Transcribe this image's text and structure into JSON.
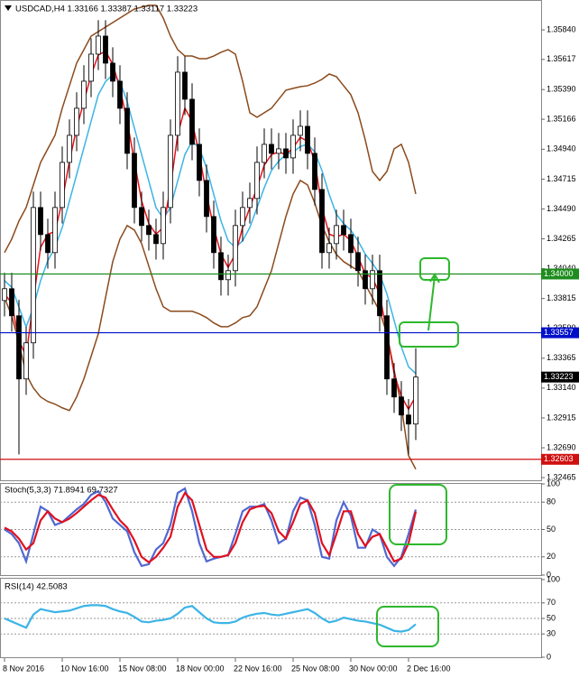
{
  "chart_data": [
    {
      "type": "candlestick",
      "title": "USDCAD,H4  1.33166 1.33387 1.33117 1.33223",
      "categories": [
        "8 Nov 2016",
        null,
        null,
        null,
        null,
        null,
        null,
        null,
        "10 Nov 16:00",
        null,
        null,
        null,
        null,
        null,
        null,
        null,
        "15 Nov 08:00",
        null,
        null,
        null,
        null,
        null,
        null,
        null,
        "18 Nov 00:00",
        null,
        null,
        null,
        null,
        null,
        null,
        null,
        "22 Nov 16:00",
        null,
        null,
        null,
        null,
        null,
        null,
        null,
        "25 Nov 08:00",
        null,
        null,
        null,
        null,
        null,
        null,
        null,
        "30 Nov 00:00",
        null,
        null,
        null,
        null,
        null,
        null,
        null,
        "2 Dec 16:00",
        null
      ],
      "open": [
        1.338,
        1.33889,
        1.33685,
        1.33209,
        1.33481,
        1.34501,
        1.34297,
        1.34161,
        1.34501,
        1.34841,
        1.35045,
        1.35249,
        1.35453,
        1.35657,
        1.35793,
        1.35589,
        1.35453,
        1.35249,
        1.34909,
        1.34501,
        1.34365,
        1.34297,
        1.34229,
        1.34501,
        1.35045,
        1.35521,
        1.35317,
        1.34977,
        1.34705,
        1.34433,
        1.34161,
        1.33957,
        1.34025,
        1.34365,
        1.34501,
        1.34569,
        1.34841,
        1.34977,
        1.34909,
        1.34943,
        1.34875,
        1.35045,
        1.35113,
        1.34909,
        1.34637,
        1.34161,
        1.34229,
        1.34365,
        1.34297,
        1.34161,
        1.34025,
        1.33889,
        1.34025,
        1.33685,
        1.33209,
        1.33073,
        1.32937,
        1.32869
      ],
      "high": [
        1.34009,
        1.34009,
        1.33805,
        1.33601,
        1.34621,
        1.34621,
        1.34417,
        1.34621,
        1.34961,
        1.35165,
        1.35369,
        1.35573,
        1.35777,
        1.35913,
        1.35913,
        1.35709,
        1.35573,
        1.35369,
        1.35029,
        1.34621,
        1.34485,
        1.34417,
        1.34621,
        1.35165,
        1.35641,
        1.35641,
        1.35437,
        1.35097,
        1.34825,
        1.34553,
        1.34281,
        1.34145,
        1.34485,
        1.34621,
        1.34689,
        1.34961,
        1.35097,
        1.35097,
        1.35063,
        1.35063,
        1.35165,
        1.35233,
        1.35233,
        1.35029,
        1.34757,
        1.34349,
        1.34485,
        1.34485,
        1.34417,
        1.34281,
        1.34145,
        1.34145,
        1.34145,
        1.33805,
        1.33329,
        1.33193,
        1.33057,
        1.3344
      ],
      "low": [
        1.3368,
        1.33565,
        1.3264,
        1.33089,
        1.33361,
        1.34177,
        1.34041,
        1.34041,
        1.34381,
        1.34721,
        1.34925,
        1.35129,
        1.35333,
        1.35537,
        1.35469,
        1.35333,
        1.35129,
        1.34789,
        1.34381,
        1.34245,
        1.34177,
        1.34109,
        1.34109,
        1.34381,
        1.34925,
        1.35197,
        1.34857,
        1.34585,
        1.34313,
        1.34041,
        1.33837,
        1.33837,
        1.33905,
        1.34245,
        1.34381,
        1.34449,
        1.34721,
        1.34789,
        1.34789,
        1.34755,
        1.34755,
        1.34925,
        1.34789,
        1.34517,
        1.34041,
        1.34041,
        1.34109,
        1.34177,
        1.34041,
        1.33905,
        1.33769,
        1.33769,
        1.33565,
        1.33089,
        1.32953,
        1.32817,
        1.3264,
        1.32749
      ],
      "close": [
        1.33889,
        1.33685,
        1.33209,
        1.33481,
        1.34501,
        1.34297,
        1.34161,
        1.34501,
        1.34841,
        1.35045,
        1.35249,
        1.35453,
        1.35657,
        1.35793,
        1.35589,
        1.35453,
        1.35249,
        1.34909,
        1.34501,
        1.34365,
        1.34297,
        1.34229,
        1.34501,
        1.35045,
        1.35521,
        1.35317,
        1.34977,
        1.34705,
        1.34433,
        1.34161,
        1.33957,
        1.34025,
        1.34365,
        1.34501,
        1.34569,
        1.34841,
        1.34977,
        1.34909,
        1.34943,
        1.34875,
        1.35045,
        1.35113,
        1.34909,
        1.34637,
        1.34161,
        1.34229,
        1.34365,
        1.34297,
        1.34161,
        1.34025,
        1.33889,
        1.34025,
        1.33685,
        1.33209,
        1.33073,
        1.32937,
        1.32869,
        1.33223
      ],
      "overlays": [
        {
          "color": "#8b4a1c",
          "values": [
            1.34161,
            1.34263,
            1.34399,
            1.34501,
            1.34671,
            1.34841,
            1.34943,
            1.35045,
            1.35249,
            1.35419,
            1.35589,
            1.35691,
            1.35793,
            1.35827,
            1.35861,
            1.35895,
            1.35929,
            1.35963,
            1.35997,
            1.36011,
            1.36025,
            1.36025,
            1.35929,
            1.35793,
            1.35691,
            1.35643,
            1.35643,
            1.35623,
            1.35623,
            1.35643,
            1.35671,
            1.35691,
            1.35657,
            1.35453,
            1.35215,
            1.35181,
            1.35215,
            1.35249,
            1.35317,
            1.35385,
            1.35399,
            1.35412,
            1.35419,
            1.35439,
            1.35467,
            1.35507,
            1.35487,
            1.35419,
            1.35351,
            1.35215,
            1.35011,
            1.34773,
            1.34705,
            1.34773,
            1.34943,
            1.34977,
            1.34841,
            1.34603
          ]
        },
        {
          "color": "#8b4a1c",
          "values": [
            1.33821,
            1.33685,
            1.33481,
            1.33243,
            1.33141,
            1.33073,
            1.33039,
            1.33019,
            1.32991,
            1.32971,
            1.33073,
            1.33209,
            1.33379,
            1.33549,
            1.33821,
            1.34093,
            1.34263,
            1.34365,
            1.34331,
            1.34229,
            1.34059,
            1.33889,
            1.33753,
            1.33719,
            1.33719,
            1.33719,
            1.33719,
            1.33699,
            1.33671,
            1.33631,
            1.33603,
            1.33603,
            1.33631,
            1.33671,
            1.33685,
            1.33753,
            1.33889,
            1.34025,
            1.34229,
            1.34433,
            1.34603,
            1.34705,
            1.34671,
            1.34535,
            1.34365,
            1.34243,
            1.34147,
            1.34093,
            1.34059,
            1.34025,
            1.33923,
            1.33821,
            1.33719,
            1.33549,
            1.33277,
            1.33005,
            1.32631,
            1.32529
          ]
        },
        {
          "color": "#3cb4e6",
          "values": [
            1.3395,
            1.339,
            1.3375,
            1.336,
            1.3375,
            1.3395,
            1.341,
            1.342,
            1.3435,
            1.3455,
            1.3475,
            1.3495,
            1.3515,
            1.3535,
            1.3545,
            1.355,
            1.3545,
            1.353,
            1.351,
            1.349,
            1.347,
            1.345,
            1.3442,
            1.345,
            1.347,
            1.349,
            1.35,
            1.3495,
            1.348,
            1.346,
            1.344,
            1.3425,
            1.342,
            1.3425,
            1.3435,
            1.345,
            1.3465,
            1.3478,
            1.3485,
            1.349,
            1.3492,
            1.3496,
            1.3498,
            1.3492,
            1.3478,
            1.346,
            1.3445,
            1.3438,
            1.3433,
            1.3425,
            1.3415,
            1.3408,
            1.34,
            1.3385,
            1.3365,
            1.3345,
            1.333,
            1.3325
          ]
        },
        {
          "color": "#e8101a",
          "values": [
            1.3385,
            1.3378,
            1.335,
            1.3338,
            1.338,
            1.342,
            1.343,
            1.3432,
            1.3455,
            1.3485,
            1.351,
            1.353,
            1.355,
            1.3565,
            1.3568,
            1.3558,
            1.354,
            1.3515,
            1.3485,
            1.3455,
            1.3438,
            1.343,
            1.3435,
            1.3465,
            1.3505,
            1.3525,
            1.3515,
            1.349,
            1.346,
            1.3435,
            1.3415,
            1.3405,
            1.3415,
            1.3435,
            1.345,
            1.3465,
            1.3482,
            1.349,
            1.3492,
            1.349,
            1.3495,
            1.3503,
            1.35,
            1.3485,
            1.345,
            1.343,
            1.3428,
            1.343,
            1.3425,
            1.3413,
            1.34,
            1.3397,
            1.3385,
            1.3355,
            1.3325,
            1.3308,
            1.3298,
            1.3308
          ]
        }
      ],
      "levels": [
        {
          "value": 1.34,
          "label": "1.34000",
          "color": "#1e8c1e"
        },
        {
          "value": 1.33557,
          "label": "1.33557",
          "color": "#0010c8"
        },
        {
          "value": 1.32603,
          "label": "1.32603",
          "color": "#d01010"
        }
      ],
      "last_price": 1.33223,
      "ylim": [
        1.32445,
        1.36065
      ],
      "yticks": [
        {
          "value": 1.3584,
          "label": "1.35840"
        },
        1.35617,
        {
          "value": 1.3539,
          "label": "1.35390"
        },
        1.35166,
        {
          "value": 1.3494,
          "label": "1.34940"
        },
        1.34715,
        {
          "value": 1.3449,
          "label": "1.34490"
        },
        1.34265,
        {
          "value": 1.3404,
          "label": "1.34040"
        },
        1.33815,
        {
          "value": 1.3359,
          "label": "1.33590"
        },
        1.33365,
        {
          "value": 1.3314,
          "label": "1.33140"
        },
        1.32915,
        {
          "value": 1.3269,
          "label": "1.32690"
        },
        1.32465
      ]
    },
    {
      "type": "line",
      "title": "Stoch(5,3,3) 71.8941 69.7327",
      "series": [
        {
          "color": "#5068d0",
          "values": [
            50,
            45,
            35,
            15,
            45,
            75,
            70,
            55,
            58,
            65,
            72,
            78,
            88,
            92,
            80,
            62,
            55,
            48,
            25,
            10,
            12,
            28,
            35,
            55,
            90,
            95,
            70,
            35,
            15,
            18,
            20,
            22,
            45,
            70,
            75,
            75,
            78,
            60,
            35,
            40,
            70,
            85,
            82,
            55,
            20,
            18,
            60,
            80,
            65,
            30,
            30,
            50,
            45,
            20,
            10,
            20,
            45,
            71.8941
          ]
        },
        {
          "color": "#e01020",
          "values": [
            52,
            48,
            40,
            28,
            35,
            60,
            70,
            62,
            58,
            62,
            68,
            75,
            82,
            88,
            85,
            72,
            60,
            52,
            38,
            20,
            14,
            20,
            30,
            42,
            75,
            90,
            82,
            55,
            28,
            20,
            20,
            22,
            35,
            58,
            72,
            75,
            76,
            68,
            48,
            40,
            58,
            78,
            82,
            68,
            35,
            22,
            45,
            70,
            70,
            45,
            32,
            42,
            45,
            30,
            15,
            18,
            35,
            69.7327
          ]
        }
      ],
      "levels": [
        80,
        50,
        20
      ],
      "ylim": [
        0,
        100
      ],
      "yticks": [
        100,
        80,
        50,
        20,
        0
      ]
    },
    {
      "type": "line",
      "title": "RSI(14) 42.5083",
      "series": [
        {
          "color": "#3cb4e6",
          "values": [
            50,
            46,
            42,
            38,
            55,
            62,
            60,
            58,
            59,
            60,
            63,
            66,
            67,
            67,
            66,
            62,
            59,
            57,
            52,
            46,
            45,
            47,
            48,
            50,
            56,
            64,
            66,
            58,
            50,
            45,
            44,
            44,
            46,
            51,
            54,
            56,
            57,
            55,
            54,
            56,
            58,
            60,
            62,
            57,
            50,
            45,
            47,
            51,
            49,
            47,
            46,
            44,
            42,
            38,
            34,
            33,
            35,
            42.5083
          ]
        }
      ],
      "levels": [
        70,
        50,
        30
      ],
      "ylim": [
        0,
        100
      ],
      "yticks": [
        100,
        70,
        50,
        30,
        0
      ]
    }
  ]
}
